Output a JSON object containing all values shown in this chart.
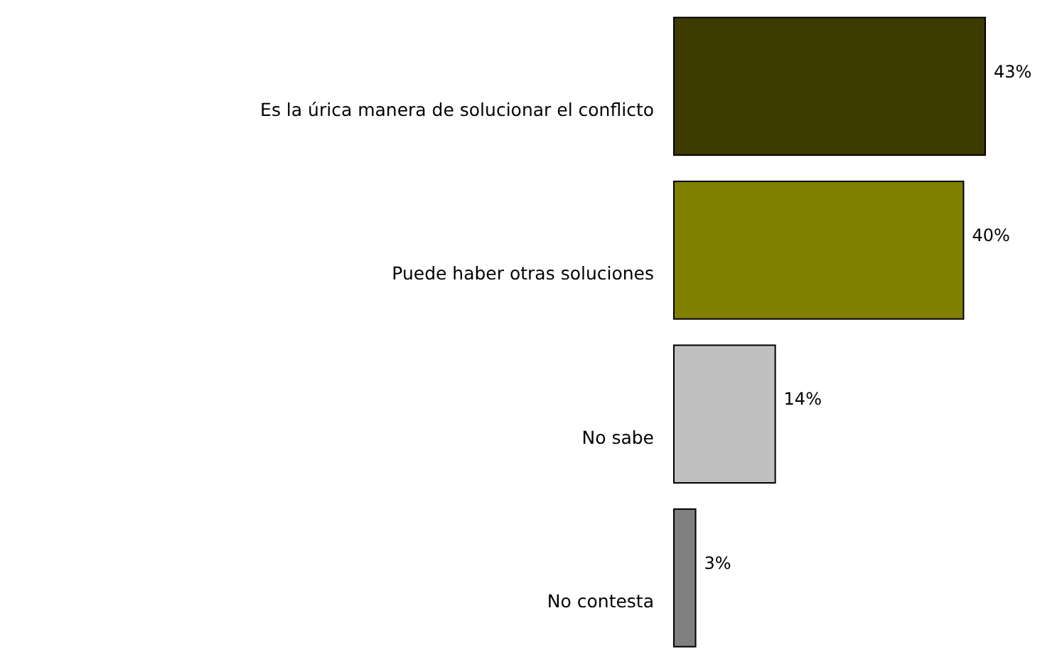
{
  "chart_data": {
    "type": "bar",
    "orientation": "horizontal",
    "categories": [
      "Es la úrica manera de solucionar el conflicto",
      "Puede haber otras soluciones",
      "No sabe",
      "No contesta"
    ],
    "values": [
      43,
      40,
      14,
      3
    ],
    "colors": [
      "#3d3b00",
      "#7f7f00",
      "#c0c0c0",
      "#808080"
    ],
    "value_labels": [
      "43%",
      "40%",
      "14%",
      "3%"
    ]
  }
}
